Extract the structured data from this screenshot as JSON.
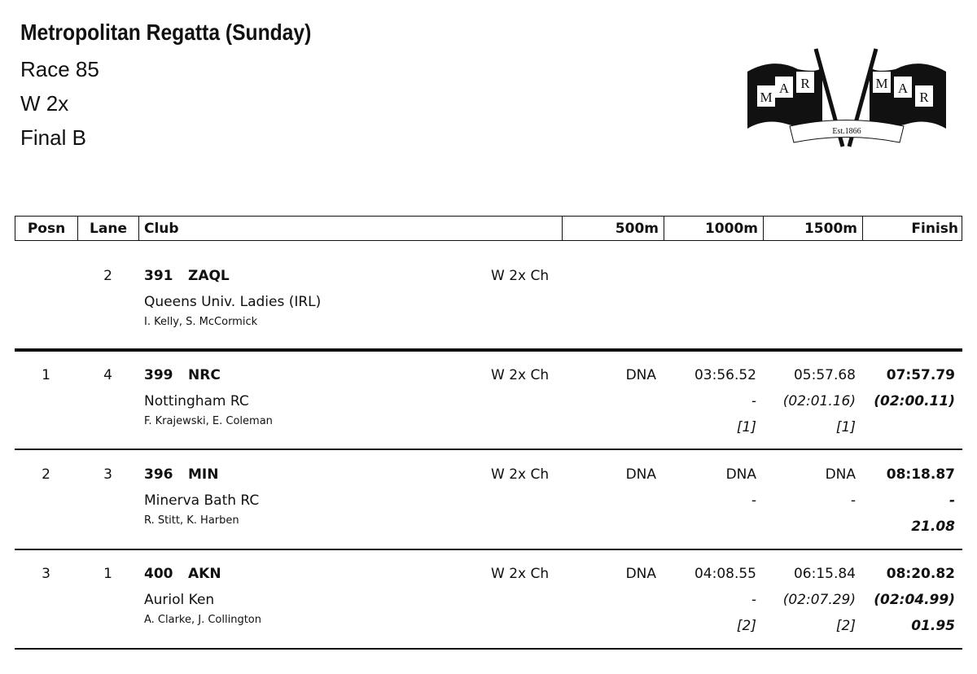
{
  "header": {
    "title": "Metropolitan Regatta (Sunday)",
    "lines": [
      "Race 85",
      "W 2x",
      "Final B"
    ]
  },
  "logo": {
    "letters_left": [
      "M",
      "A",
      "R"
    ],
    "letters_right": [
      "M",
      "A",
      "R"
    ],
    "est": "Est.1866"
  },
  "table": {
    "columns": [
      "Posn",
      "Lane",
      "Club",
      "500m",
      "1000m",
      "1500m",
      "Finish"
    ],
    "rows": [
      {
        "lane": "2",
        "bow": "391",
        "code": "ZAQL",
        "event": "W 2x Ch",
        "club": "Queens Univ. Ladies (IRL)",
        "crew": "I. Kelly, S. McCormick"
      },
      {
        "posn": "1",
        "lane": "4",
        "bow": "399",
        "code": "NRC",
        "event": "W 2x Ch",
        "club": "Nottingham RC",
        "crew": "F. Krajewski, E. Coleman",
        "t500": [
          "DNA"
        ],
        "t1000": [
          "03:56.52",
          "-",
          "[1]"
        ],
        "t1500": [
          "05:57.68",
          "(02:01.16)",
          "[1]"
        ],
        "finish": [
          "07:57.79",
          "(02:00.11)"
        ]
      },
      {
        "posn": "2",
        "lane": "3",
        "bow": "396",
        "code": "MIN",
        "event": "W 2x Ch",
        "club": "Minerva Bath RC",
        "crew": "R. Stitt, K. Harben",
        "t500": [
          "DNA"
        ],
        "t1000": [
          "DNA",
          "-"
        ],
        "t1500": [
          "DNA",
          "-"
        ],
        "finish": [
          "08:18.87",
          "-",
          "21.08"
        ]
      },
      {
        "posn": "3",
        "lane": "1",
        "bow": "400",
        "code": "AKN",
        "event": "W 2x Ch",
        "club": "Auriol Ken",
        "crew": "A. Clarke, J. Collington",
        "t500": [
          "DNA"
        ],
        "t1000": [
          "04:08.55",
          "-",
          "[2]"
        ],
        "t1500": [
          "06:15.84",
          "(02:07.29)",
          "[2]"
        ],
        "finish": [
          "08:20.82",
          "(02:04.99)",
          "01.95"
        ]
      }
    ]
  }
}
